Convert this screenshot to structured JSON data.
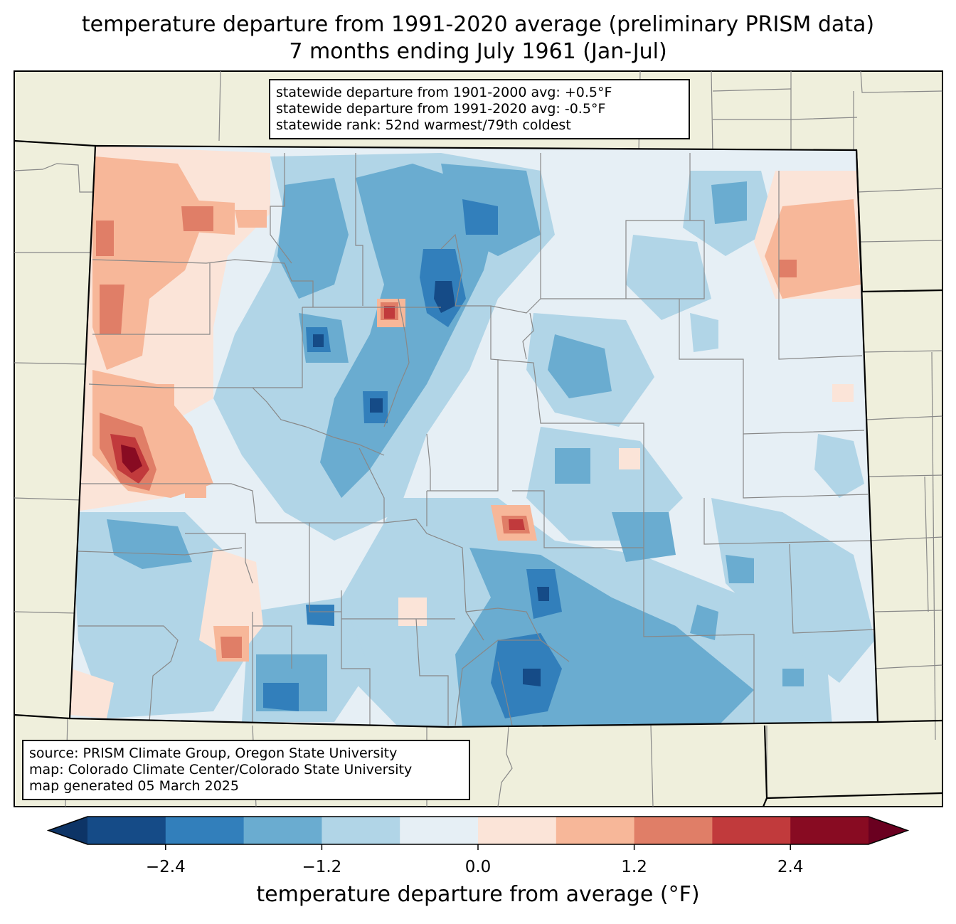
{
  "title": {
    "line1": "temperature departure from 1991-2020 average (preliminary PRISM data)",
    "line2": "7 months ending July 1961 (Jan-Jul)"
  },
  "stats": {
    "line1": "statewide departure from 1901-2000 avg: +0.5°F",
    "line2": "statewide departure from 1991-2020 avg: -0.5°F",
    "line3": "statewide rank: 52nd warmest/79th coldest"
  },
  "source": {
    "line1": "source: PRISM Climate Group, Oregon State University",
    "line2": "map: Colorado Climate Center/Colorado State University",
    "line3": "map generated 05 March 2025"
  },
  "colorbar": {
    "label": "temperature departure from average (°F)",
    "min": -3.0,
    "max": 3.0,
    "step": 0.6,
    "ticks": [
      {
        "value": -2.4,
        "label": "−2.4"
      },
      {
        "value": -1.2,
        "label": "−1.2"
      },
      {
        "value": 0.0,
        "label": "0.0"
      },
      {
        "value": 1.2,
        "label": "1.2"
      },
      {
        "value": 2.4,
        "label": "2.4"
      }
    ],
    "colors": [
      "#0d3466",
      "#154b87",
      "#327fbb",
      "#6aacd0",
      "#b1d5e7",
      "#e6eff5",
      "#fbe4d8",
      "#f7b799",
      "#e07e67",
      "#c13a3c",
      "#880b22",
      "#6a0020"
    ]
  },
  "map": {
    "land_color": "#efefdc",
    "state_fill": "#e6eff5"
  }
}
